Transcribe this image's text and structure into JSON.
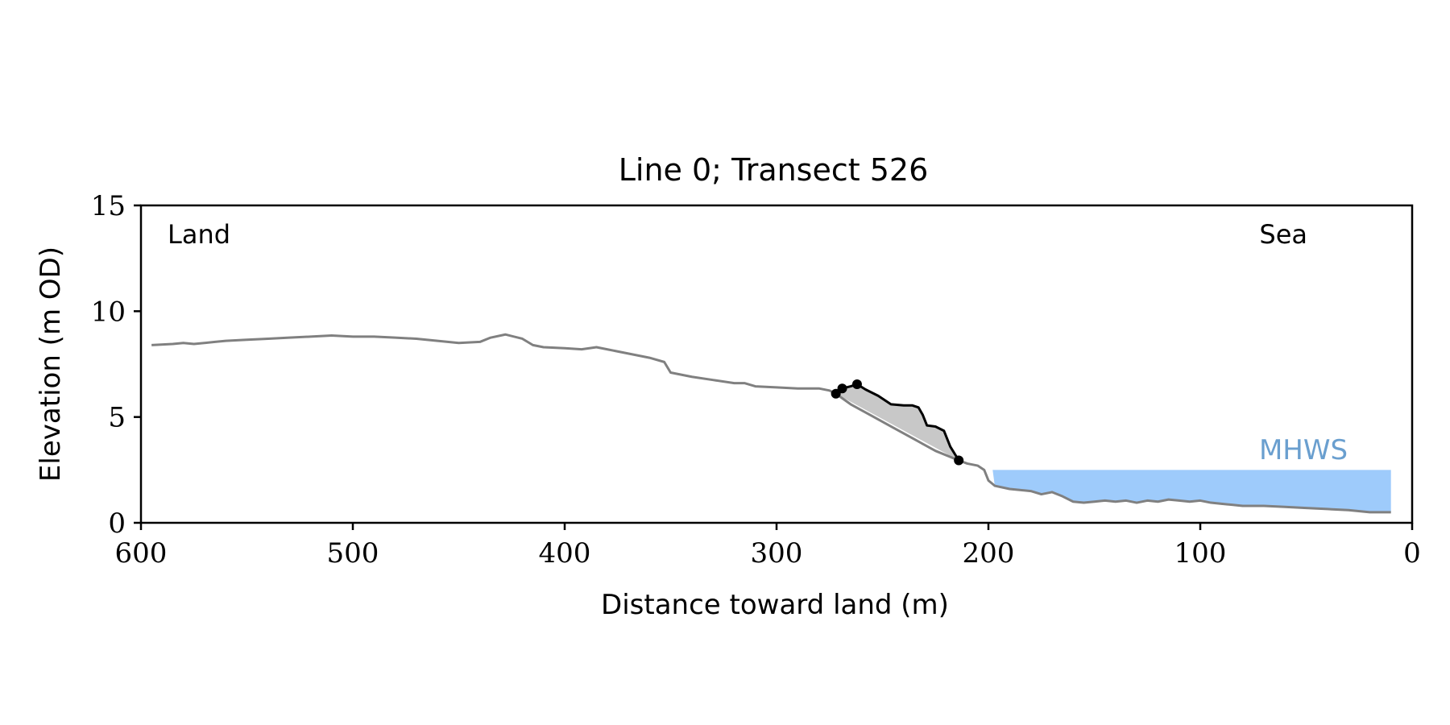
{
  "chart_data": {
    "type": "line",
    "title": "Line 0; Transect 526",
    "xlabel": "Distance toward land (m)",
    "ylabel": "Elevation (m OD)",
    "xlim": [
      600,
      0
    ],
    "ylim": [
      0,
      15
    ],
    "x_ticks": [
      600,
      500,
      400,
      300,
      200,
      100,
      0
    ],
    "y_ticks": [
      0,
      5,
      10,
      15
    ],
    "annotations": {
      "land": "Land",
      "sea": "Sea",
      "mhws": "MHWS"
    },
    "mhws": {
      "level": 2.5,
      "x_start": 198,
      "x_end": 10
    },
    "colors": {
      "profile": "#808080",
      "highlight": "#000000",
      "fill": "#c8c8c8",
      "water": "#9ecbfb",
      "mhws_text": "#6a9fcf"
    },
    "profile": [
      [
        595,
        8.4
      ],
      [
        585,
        8.45
      ],
      [
        580,
        8.5
      ],
      [
        575,
        8.45
      ],
      [
        565,
        8.55
      ],
      [
        560,
        8.6
      ],
      [
        550,
        8.65
      ],
      [
        540,
        8.7
      ],
      [
        530,
        8.75
      ],
      [
        520,
        8.8
      ],
      [
        510,
        8.85
      ],
      [
        500,
        8.8
      ],
      [
        490,
        8.8
      ],
      [
        480,
        8.75
      ],
      [
        470,
        8.7
      ],
      [
        460,
        8.6
      ],
      [
        450,
        8.5
      ],
      [
        440,
        8.55
      ],
      [
        435,
        8.75
      ],
      [
        428,
        8.9
      ],
      [
        420,
        8.7
      ],
      [
        415,
        8.4
      ],
      [
        410,
        8.3
      ],
      [
        400,
        8.25
      ],
      [
        392,
        8.2
      ],
      [
        385,
        8.3
      ],
      [
        380,
        8.2
      ],
      [
        370,
        8.0
      ],
      [
        360,
        7.8
      ],
      [
        353,
        7.6
      ],
      [
        350,
        7.1
      ],
      [
        345,
        7.0
      ],
      [
        340,
        6.9
      ],
      [
        330,
        6.75
      ],
      [
        320,
        6.6
      ],
      [
        315,
        6.6
      ],
      [
        310,
        6.45
      ],
      [
        300,
        6.4
      ],
      [
        290,
        6.35
      ],
      [
        280,
        6.35
      ],
      [
        275,
        6.25
      ],
      [
        272,
        6.1
      ],
      [
        265,
        5.6
      ],
      [
        255,
        5.05
      ],
      [
        245,
        4.5
      ],
      [
        235,
        3.95
      ],
      [
        225,
        3.4
      ],
      [
        214,
        2.95
      ],
      [
        210,
        2.8
      ],
      [
        205,
        2.7
      ],
      [
        202,
        2.5
      ],
      [
        200,
        2.0
      ],
      [
        197,
        1.75
      ],
      [
        190,
        1.6
      ],
      [
        180,
        1.5
      ],
      [
        175,
        1.35
      ],
      [
        170,
        1.45
      ],
      [
        165,
        1.25
      ],
      [
        160,
        1.0
      ],
      [
        155,
        0.95
      ],
      [
        150,
        1.0
      ],
      [
        145,
        1.05
      ],
      [
        140,
        1.0
      ],
      [
        135,
        1.05
      ],
      [
        130,
        0.95
      ],
      [
        125,
        1.05
      ],
      [
        120,
        1.0
      ],
      [
        115,
        1.1
      ],
      [
        110,
        1.05
      ],
      [
        105,
        1.0
      ],
      [
        100,
        1.05
      ],
      [
        95,
        0.95
      ],
      [
        90,
        0.9
      ],
      [
        85,
        0.85
      ],
      [
        80,
        0.8
      ],
      [
        70,
        0.8
      ],
      [
        60,
        0.75
      ],
      [
        50,
        0.7
      ],
      [
        40,
        0.65
      ],
      [
        30,
        0.6
      ],
      [
        20,
        0.5
      ],
      [
        10,
        0.5
      ]
    ],
    "highlight_profile": [
      [
        272,
        6.1
      ],
      [
        269,
        6.35
      ],
      [
        265,
        6.45
      ],
      [
        262,
        6.55
      ],
      [
        258,
        6.3
      ],
      [
        252,
        6.0
      ],
      [
        246,
        5.6
      ],
      [
        240,
        5.55
      ],
      [
        236,
        5.55
      ],
      [
        233,
        5.45
      ],
      [
        231,
        5.1
      ],
      [
        229,
        4.6
      ],
      [
        225,
        4.55
      ],
      [
        221,
        4.35
      ],
      [
        218,
        3.6
      ],
      [
        214,
        2.95
      ]
    ],
    "points": [
      [
        272,
        6.1
      ],
      [
        269,
        6.35
      ],
      [
        262,
        6.55
      ],
      [
        214,
        2.95
      ]
    ]
  }
}
